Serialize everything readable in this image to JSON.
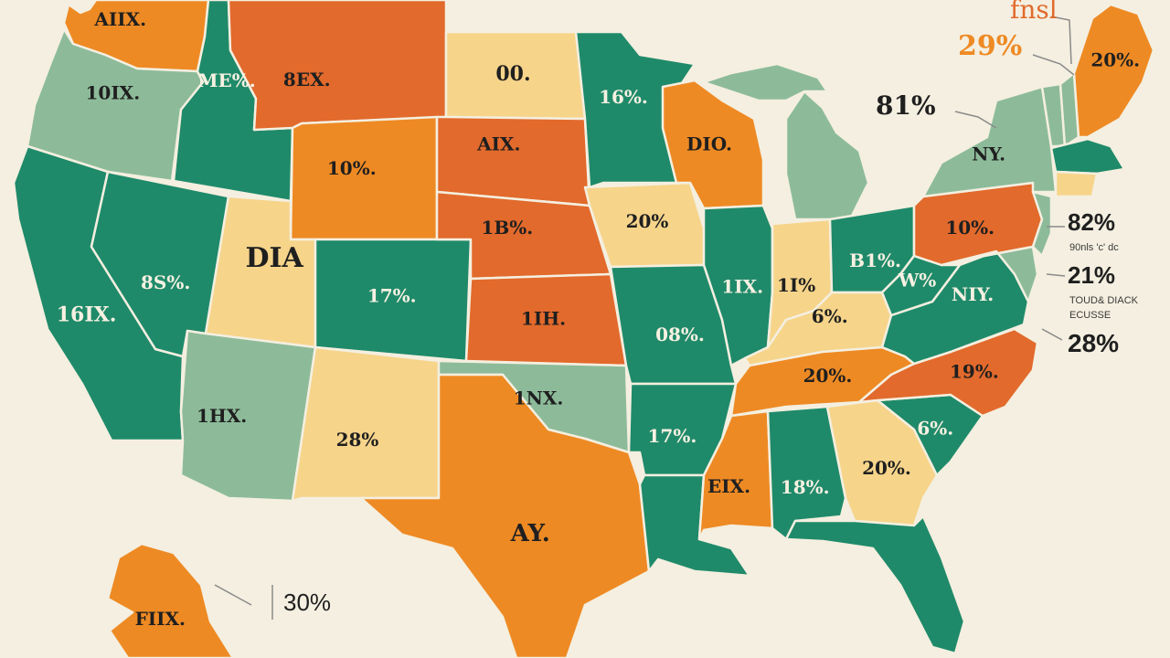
{
  "palette": {
    "dark_green": "#1f8a6a",
    "light_green": "#8dbb9a",
    "orange": "#ee8a24",
    "red_orange": "#e26a2c",
    "cream": "#f6d48a",
    "background": "#f4efe0",
    "water": "#f4efe0"
  },
  "regions": [
    {
      "id": "wa",
      "color": "orange",
      "label": "AIIX."
    },
    {
      "id": "or",
      "color": "light_green",
      "label": "10IX."
    },
    {
      "id": "ca",
      "color": "dark_green",
      "label": "16IX."
    },
    {
      "id": "id",
      "color": "dark_green",
      "label": "ME%."
    },
    {
      "id": "nv",
      "color": "dark_green",
      "label": "8S%."
    },
    {
      "id": "mt",
      "color": "red_orange",
      "label": "8EX."
    },
    {
      "id": "wy",
      "color": "orange",
      "label": "10%."
    },
    {
      "id": "ut",
      "color": "cream",
      "label": "DIA"
    },
    {
      "id": "co",
      "color": "dark_green",
      "label": "17%."
    },
    {
      "id": "az",
      "color": "light_green",
      "label": "1HX."
    },
    {
      "id": "nm",
      "color": "cream",
      "label": "28%"
    },
    {
      "id": "nd",
      "color": "cream",
      "label": "00."
    },
    {
      "id": "sd",
      "color": "red_orange",
      "label": "AIX."
    },
    {
      "id": "ne",
      "color": "red_orange",
      "label": "1B%."
    },
    {
      "id": "ks",
      "color": "red_orange",
      "label": "1IH."
    },
    {
      "id": "ok",
      "color": "light_green",
      "label": "1NX."
    },
    {
      "id": "tx",
      "color": "orange",
      "label": "AY."
    },
    {
      "id": "mn",
      "color": "dark_green",
      "label": "16%."
    },
    {
      "id": "ia",
      "color": "cream",
      "label": "20%"
    },
    {
      "id": "mo",
      "color": "dark_green",
      "label": "08%."
    },
    {
      "id": "ar",
      "color": "dark_green",
      "label": "17%."
    },
    {
      "id": "la",
      "color": "dark_green",
      "label": ""
    },
    {
      "id": "wi",
      "color": "orange",
      "label": "DIO."
    },
    {
      "id": "il",
      "color": "dark_green",
      "label": "1IX."
    },
    {
      "id": "mi",
      "color": "light_green",
      "label": ""
    },
    {
      "id": "in",
      "color": "cream",
      "label": "1I%"
    },
    {
      "id": "oh",
      "color": "dark_green",
      "label": "B1%."
    },
    {
      "id": "ky",
      "color": "cream",
      "label": "6%."
    },
    {
      "id": "tn",
      "color": "orange",
      "label": "20%."
    },
    {
      "id": "ms",
      "color": "orange",
      "label": "EIX."
    },
    {
      "id": "al",
      "color": "dark_green",
      "label": "18%."
    },
    {
      "id": "ga",
      "color": "cream",
      "label": "20%."
    },
    {
      "id": "fl",
      "color": "dark_green",
      "label": ""
    },
    {
      "id": "sc",
      "color": "dark_green",
      "label": "6%."
    },
    {
      "id": "nc",
      "color": "red_orange",
      "label": "19%."
    },
    {
      "id": "va",
      "color": "dark_green",
      "label": "NIY."
    },
    {
      "id": "wv",
      "color": "dark_green",
      "label": "W%"
    },
    {
      "id": "pa",
      "color": "red_orange",
      "label": "10%."
    },
    {
      "id": "ny",
      "color": "light_green",
      "label": "NY."
    },
    {
      "id": "vt",
      "color": "light_green",
      "label": ""
    },
    {
      "id": "nh",
      "color": "light_green",
      "label": ""
    },
    {
      "id": "me",
      "color": "orange",
      "label": "20%."
    },
    {
      "id": "ma",
      "color": "dark_green",
      "label": ""
    },
    {
      "id": "ct",
      "color": "cream",
      "label": ""
    },
    {
      "id": "nj",
      "color": "light_green",
      "label": ""
    },
    {
      "id": "md",
      "color": "light_green",
      "label": ""
    },
    {
      "id": "ak",
      "color": "orange",
      "label": "FIIX."
    }
  ],
  "callouts": {
    "top_word": "fnsl",
    "ne_pct": "29%",
    "ne_mid": "81%",
    "east_1": "82%",
    "east_1_note": "90nls 'c' dc",
    "east_2": "21%",
    "east_2_note_1": "TOUD& DIACK",
    "east_2_note_2": "ECUSSE",
    "east_3": "28%",
    "alaska_pct": "30%"
  }
}
